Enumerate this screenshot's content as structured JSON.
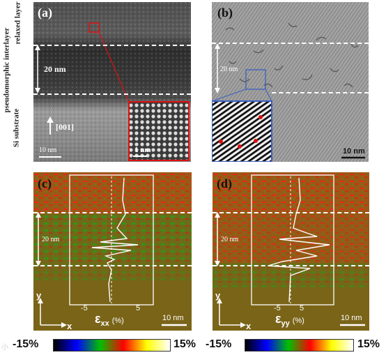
{
  "figure": {
    "panel_a": {
      "tag": "(a)",
      "side_labels": [
        "relaxed layer",
        "pseudomorphic interlayer",
        "Si substrate"
      ],
      "thickness_label": "20 nm",
      "direction_label": "[001]",
      "scalebar_label": "10 nm",
      "inset_scalebar_label": "1 nm"
    },
    "panel_b": {
      "tag": "(b)",
      "thickness_label": "20 nm",
      "scalebar_label": "10 nm"
    },
    "panel_c": {
      "tag": "(c)",
      "thickness_label": "20 nm",
      "scalebar_label": "10 nm",
      "axis_y": "y",
      "axis_x": "x",
      "profile_ticks": [
        "-5",
        "5"
      ],
      "profile_label_main": "ε",
      "profile_label_sub": "xx",
      "profile_label_unit": "(%)"
    },
    "panel_d": {
      "tag": "(d)",
      "thickness_label": "20 nm",
      "scalebar_label": "10 nm",
      "axis_y": "y",
      "axis_x": "x",
      "profile_ticks": [
        "-5",
        "5"
      ],
      "profile_label_main": "ε",
      "profile_label_sub": "yy",
      "profile_label_unit": "(%)"
    },
    "colorbar": {
      "min_label": "-15%",
      "max_label": "15%",
      "colors": [
        "#000000",
        "#0000ff",
        "#00c000",
        "#ff0000",
        "#ffff00",
        "#ffffff"
      ]
    },
    "watermark": "小"
  }
}
